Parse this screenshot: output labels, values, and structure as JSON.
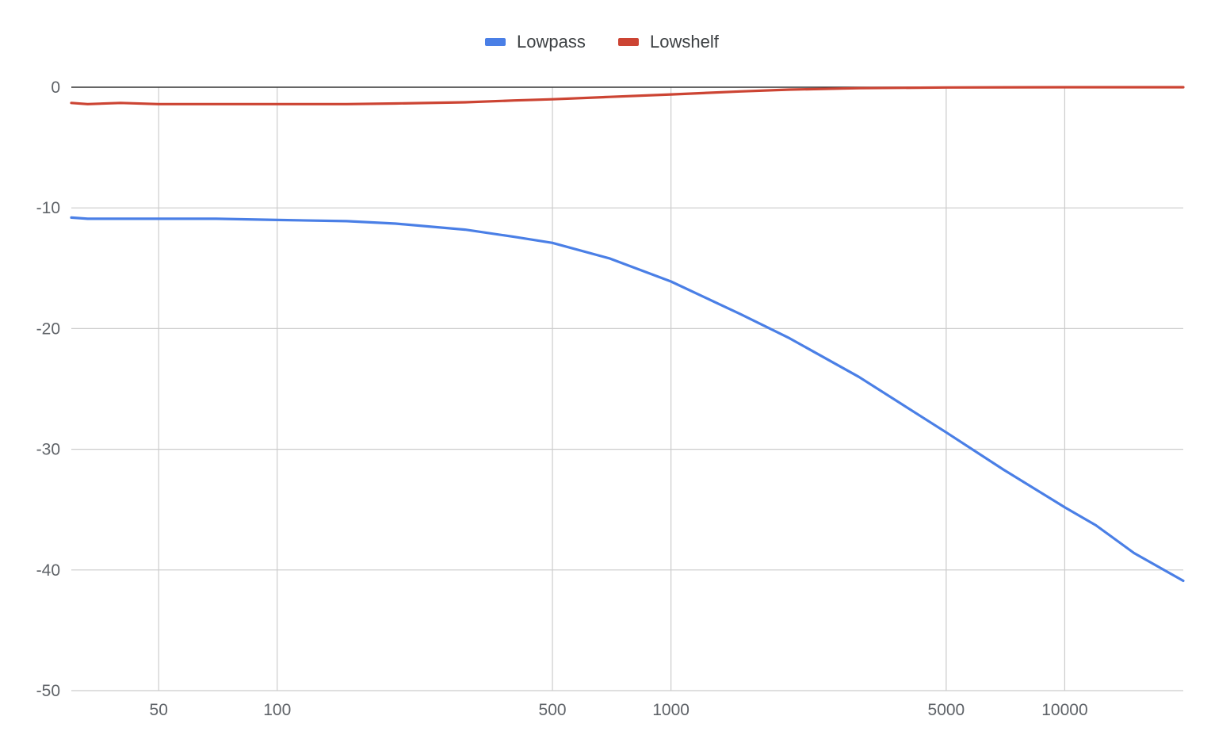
{
  "chart_data": {
    "type": "line",
    "title": "",
    "xlabel": "",
    "ylabel": "",
    "x_scale": "log",
    "xlim": [
      30,
      20000
    ],
    "ylim": [
      -50,
      0
    ],
    "x_ticks": [
      50,
      100,
      500,
      1000,
      5000,
      10000
    ],
    "x_tick_labels": [
      "50",
      "100",
      "500",
      "1000",
      "5000",
      "10000"
    ],
    "y_ticks": [
      0,
      -10,
      -20,
      -30,
      -40,
      -50
    ],
    "y_tick_labels": [
      "0",
      "-10",
      "-20",
      "-30",
      "-40",
      "-50"
    ],
    "grid": true,
    "legend": "top-center",
    "series": [
      {
        "name": "Lowpass",
        "color": "#4a7fe6",
        "points": [
          [
            30,
            -10.8
          ],
          [
            33,
            -10.9
          ],
          [
            40,
            -10.9
          ],
          [
            50,
            -10.9
          ],
          [
            70,
            -10.9
          ],
          [
            100,
            -11.0
          ],
          [
            150,
            -11.1
          ],
          [
            200,
            -11.3
          ],
          [
            300,
            -11.8
          ],
          [
            400,
            -12.4
          ],
          [
            500,
            -12.9
          ],
          [
            700,
            -14.2
          ],
          [
            1000,
            -16.1
          ],
          [
            1500,
            -18.8
          ],
          [
            2000,
            -20.8
          ],
          [
            3000,
            -24.0
          ],
          [
            5000,
            -28.6
          ],
          [
            7000,
            -31.7
          ],
          [
            10000,
            -34.8
          ],
          [
            12000,
            -36.3
          ],
          [
            15000,
            -38.6
          ],
          [
            20000,
            -40.9
          ]
        ]
      },
      {
        "name": "Lowshelf",
        "color": "#cc4433",
        "points": [
          [
            30,
            -1.3
          ],
          [
            33,
            -1.4
          ],
          [
            40,
            -1.3
          ],
          [
            50,
            -1.4
          ],
          [
            70,
            -1.4
          ],
          [
            100,
            -1.4
          ],
          [
            150,
            -1.4
          ],
          [
            200,
            -1.35
          ],
          [
            300,
            -1.25
          ],
          [
            400,
            -1.1
          ],
          [
            500,
            -1.0
          ],
          [
            700,
            -0.8
          ],
          [
            1000,
            -0.6
          ],
          [
            1500,
            -0.35
          ],
          [
            2000,
            -0.2
          ],
          [
            3000,
            -0.08
          ],
          [
            5000,
            -0.02
          ],
          [
            10000,
            0.0
          ],
          [
            20000,
            0.0
          ]
        ]
      }
    ]
  }
}
